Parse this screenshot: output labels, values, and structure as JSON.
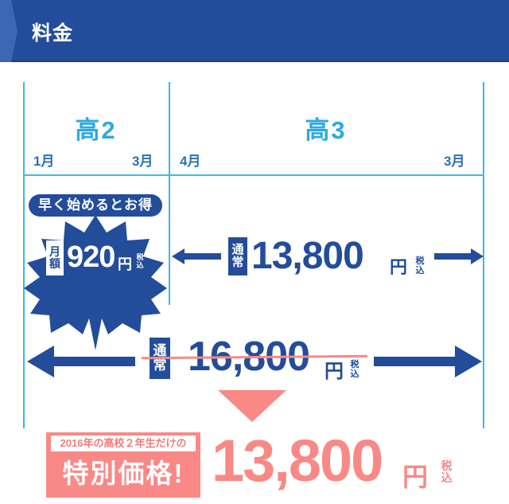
{
  "header": {
    "title": "料金"
  },
  "columns": {
    "grade2": {
      "label": "高2",
      "start_month": "1月",
      "end_month": "3月"
    },
    "grade3": {
      "label": "高3",
      "start_month": "4月",
      "end_month": "3月"
    }
  },
  "early": {
    "ribbon": "早く始めるとお得",
    "badge_chars": [
      "月",
      "額"
    ],
    "price": "920",
    "unit": "円",
    "tax_chars": [
      "税",
      "込"
    ]
  },
  "grade3_price": {
    "badge_chars": [
      "通",
      "常"
    ],
    "price": "13,800",
    "unit": "円",
    "tax_chars": [
      "税",
      "込"
    ]
  },
  "regular_price": {
    "badge_chars": [
      "通",
      "常"
    ],
    "price": "16,800",
    "unit": "円",
    "tax_chars": [
      "税",
      "込"
    ]
  },
  "special": {
    "note": "2016年の高校２年生だけの",
    "label": "特別価格!",
    "price": "13,800",
    "unit": "円",
    "tax_chars": [
      "税",
      "込"
    ]
  },
  "colors": {
    "navy": "#234d9a",
    "sky": "#3ab9e9",
    "pink": "#f98986"
  }
}
